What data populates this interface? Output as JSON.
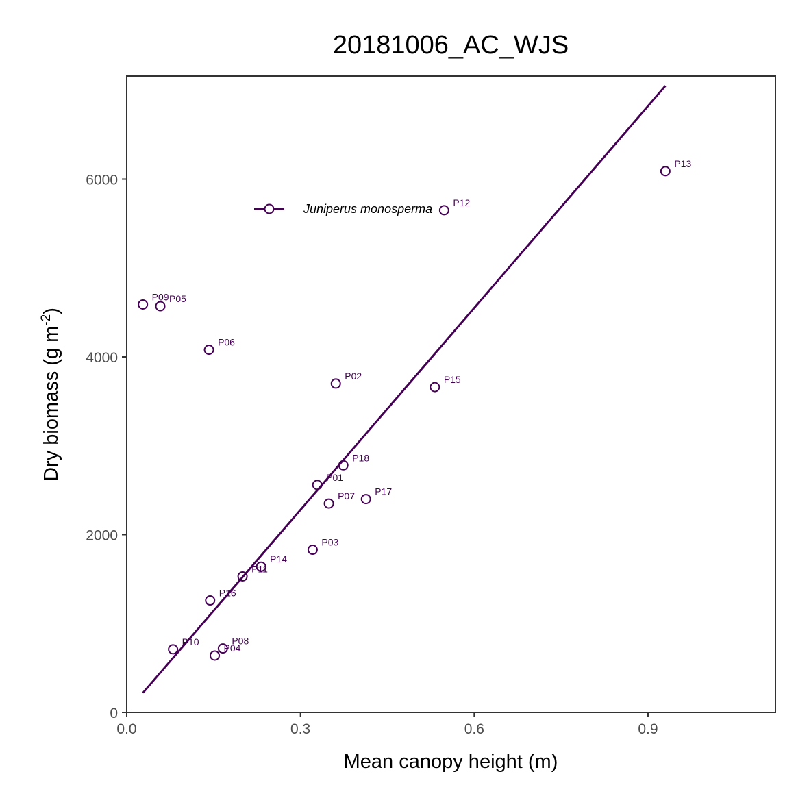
{
  "chart_data": {
    "type": "scatter",
    "title": "20181006_AC_WJS",
    "xlabel": "Mean canopy height (m)",
    "ylabel_main": "Dry biomass (g m",
    "ylabel_sup": "-2",
    "ylabel_end": ")",
    "xlim": [
      0.0,
      1.12
    ],
    "ylim": [
      0,
      7160
    ],
    "x_ticks": [
      0.0,
      0.3,
      0.6,
      0.9
    ],
    "x_tick_labels": [
      "0.0",
      "0.3",
      "0.6",
      "0.9"
    ],
    "y_ticks": [
      0,
      2000,
      4000,
      6000
    ],
    "y_tick_labels": [
      "0",
      "2000",
      "4000",
      "6000"
    ],
    "grid": false,
    "color": "#440154",
    "legend": {
      "position": "top-left (inside)",
      "label": "Juniperus monosperma"
    },
    "series": [
      {
        "name": "Juniperus monosperma",
        "points": [
          {
            "label": "P01",
            "x": 0.329,
            "y": 2560
          },
          {
            "label": "P02",
            "x": 0.361,
            "y": 3700
          },
          {
            "label": "P03",
            "x": 0.321,
            "y": 1830
          },
          {
            "label": "P04",
            "x": 0.152,
            "y": 640
          },
          {
            "label": "P05",
            "x": 0.058,
            "y": 4570
          },
          {
            "label": "P06",
            "x": 0.142,
            "y": 4080
          },
          {
            "label": "P07",
            "x": 0.349,
            "y": 2350
          },
          {
            "label": "P08",
            "x": 0.166,
            "y": 720
          },
          {
            "label": "P09",
            "x": 0.028,
            "y": 4590
          },
          {
            "label": "P10",
            "x": 0.08,
            "y": 710
          },
          {
            "label": "P11",
            "x": 0.2,
            "y": 1530
          },
          {
            "label": "P12",
            "x": 0.548,
            "y": 5650
          },
          {
            "label": "P13",
            "x": 0.93,
            "y": 6090
          },
          {
            "label": "P14",
            "x": 0.232,
            "y": 1640
          },
          {
            "label": "P15",
            "x": 0.532,
            "y": 3660
          },
          {
            "label": "P16",
            "x": 0.144,
            "y": 1260
          },
          {
            "label": "P17",
            "x": 0.413,
            "y": 2400
          },
          {
            "label": "P18",
            "x": 0.374,
            "y": 2780
          }
        ],
        "fit_line": {
          "x": [
            0.028,
            0.93
          ],
          "y": [
            220,
            7050
          ]
        }
      }
    ]
  }
}
